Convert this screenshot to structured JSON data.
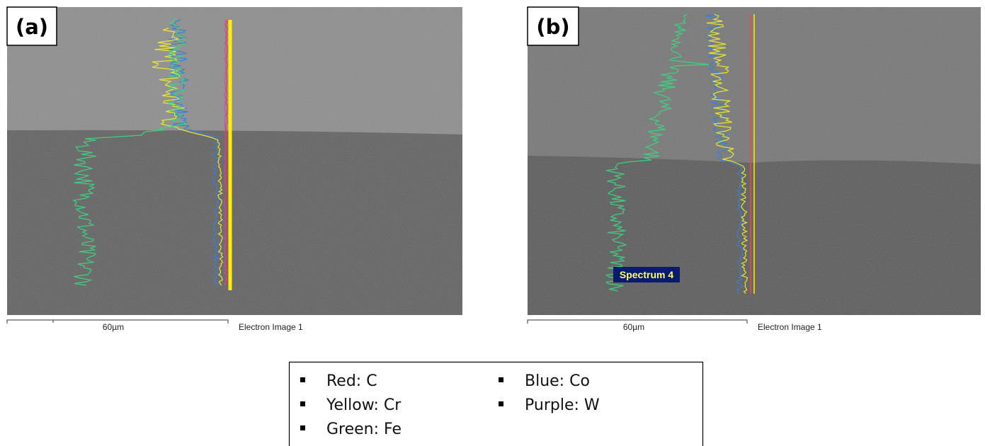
{
  "panels": [
    {
      "label": "(a)",
      "scale_bar": "60µm",
      "caption": "Electron Image 1"
    },
    {
      "label": "(b)",
      "scale_bar": "60µm",
      "caption": "Electron Image 1",
      "spectrum_label": "Spectrum 4"
    }
  ],
  "legend": {
    "items": [
      "Red: C",
      "Yellow: Cr",
      "Green: Fe",
      "Blue: Co",
      "Purple: W"
    ]
  }
}
